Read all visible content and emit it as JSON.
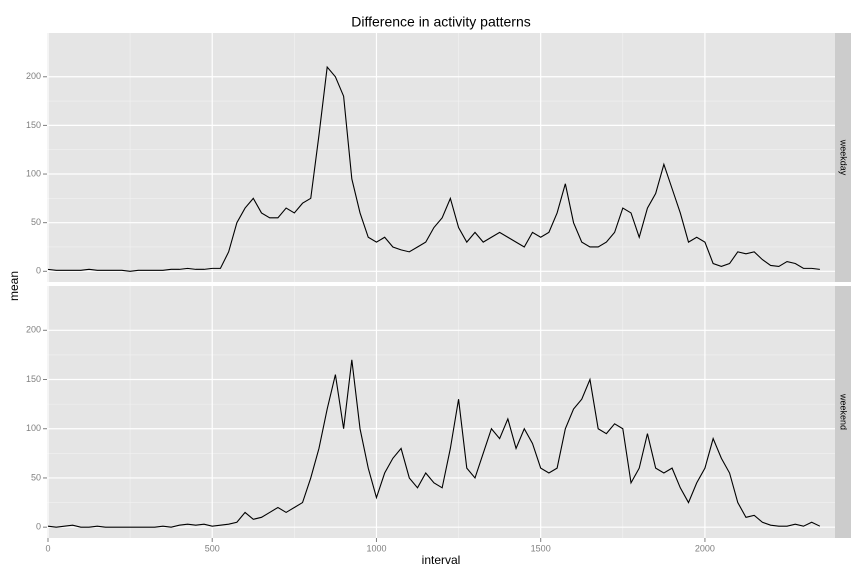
{
  "chart_data": {
    "type": "line",
    "title": "Difference in activity patterns",
    "x_label": "interval",
    "y_label": "mean",
    "x": [
      0,
      25,
      50,
      75,
      100,
      125,
      150,
      175,
      200,
      225,
      250,
      275,
      300,
      325,
      350,
      375,
      400,
      425,
      450,
      475,
      500,
      525,
      550,
      575,
      600,
      625,
      650,
      675,
      700,
      725,
      750,
      775,
      800,
      825,
      850,
      875,
      900,
      925,
      950,
      975,
      1000,
      1025,
      1050,
      1075,
      1100,
      1125,
      1150,
      1175,
      1200,
      1225,
      1250,
      1275,
      1300,
      1325,
      1350,
      1375,
      1400,
      1425,
      1450,
      1475,
      1500,
      1525,
      1550,
      1575,
      1600,
      1625,
      1650,
      1675,
      1700,
      1725,
      1750,
      1775,
      1800,
      1825,
      1850,
      1875,
      1900,
      1925,
      1950,
      1975,
      2000,
      2025,
      2050,
      2075,
      2100,
      2125,
      2150,
      2175,
      2200,
      2225,
      2250,
      2275,
      2300,
      2325,
      2350
    ],
    "series": [
      {
        "name": "weekday",
        "color": "#000000",
        "values": [
          2,
          1,
          1,
          1,
          1,
          2,
          1,
          1,
          1,
          1,
          0,
          1,
          1,
          1,
          1,
          2,
          2,
          3,
          2,
          2,
          3,
          3,
          20,
          50,
          65,
          75,
          60,
          55,
          55,
          65,
          60,
          70,
          75,
          140,
          210,
          200,
          180,
          95,
          60,
          35,
          30,
          35,
          25,
          22,
          20,
          25,
          30,
          45,
          55,
          75,
          45,
          30,
          40,
          30,
          35,
          40,
          35,
          30,
          25,
          40,
          35,
          40,
          60,
          90,
          50,
          30,
          25,
          25,
          30,
          40,
          65,
          60,
          35,
          65,
          80,
          110,
          85,
          60,
          30,
          35,
          30,
          8,
          5,
          8,
          20,
          18,
          20,
          12,
          6,
          5,
          10,
          8,
          3,
          3,
          2
        ]
      },
      {
        "name": "weekend",
        "color": "#000000",
        "values": [
          1,
          0,
          1,
          2,
          0,
          0,
          1,
          0,
          0,
          0,
          0,
          0,
          0,
          0,
          1,
          0,
          2,
          3,
          2,
          3,
          1,
          2,
          3,
          5,
          15,
          8,
          10,
          15,
          20,
          15,
          20,
          25,
          50,
          80,
          120,
          155,
          100,
          170,
          100,
          60,
          30,
          55,
          70,
          80,
          50,
          40,
          55,
          45,
          40,
          80,
          130,
          60,
          50,
          75,
          100,
          90,
          110,
          80,
          100,
          85,
          60,
          55,
          60,
          100,
          120,
          130,
          150,
          100,
          95,
          105,
          100,
          45,
          60,
          95,
          60,
          55,
          60,
          40,
          25,
          45,
          60,
          90,
          70,
          55,
          25,
          10,
          12,
          5,
          2,
          1,
          1,
          3,
          1,
          5,
          1
        ]
      }
    ],
    "xlim": [
      -3,
      2396
    ],
    "ylim": [
      -11,
      245
    ],
    "xticks": [
      0,
      500,
      1000,
      1500,
      2000
    ],
    "yticks": [
      0,
      50,
      100,
      150,
      200
    ],
    "grid": true
  }
}
